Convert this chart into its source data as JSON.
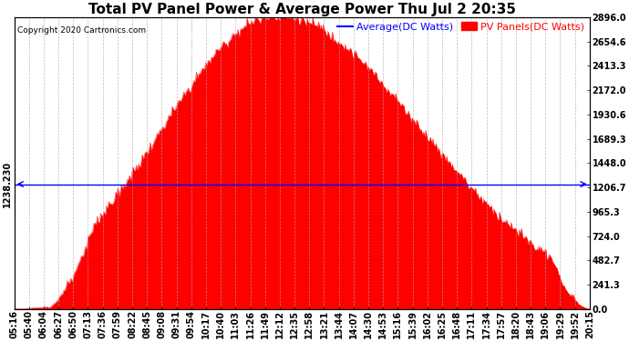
{
  "title": "Total PV Panel Power & Average Power Thu Jul 2 20:35",
  "copyright": "Copyright 2020 Cartronics.com",
  "average_value": 1238.23,
  "y_max": 2896.0,
  "y_min": 0.0,
  "y_ticks": [
    0.0,
    241.3,
    482.7,
    724.0,
    965.3,
    1206.7,
    1448.0,
    1689.3,
    1930.6,
    2172.0,
    2413.3,
    2654.6,
    2896.0
  ],
  "legend_avg_label": "Average(DC Watts)",
  "legend_pv_label": "PV Panels(DC Watts)",
  "avg_line_color": "blue",
  "pv_fill_color": "red",
  "background_color": "#ffffff",
  "grid_color": "#aaaaaa",
  "left_ylabel": "1238.230",
  "x_labels": [
    "05:16",
    "05:40",
    "06:04",
    "06:27",
    "06:50",
    "07:13",
    "07:36",
    "07:59",
    "08:22",
    "08:45",
    "09:08",
    "09:31",
    "09:54",
    "10:17",
    "10:40",
    "11:03",
    "11:26",
    "11:49",
    "12:12",
    "12:35",
    "12:58",
    "13:21",
    "13:44",
    "14:07",
    "14:30",
    "14:53",
    "15:16",
    "15:39",
    "16:02",
    "16:25",
    "16:48",
    "17:11",
    "17:34",
    "17:57",
    "18:20",
    "18:43",
    "19:06",
    "19:29",
    "19:52",
    "20:15"
  ],
  "title_fontsize": 11,
  "tick_fontsize": 7,
  "legend_fontsize": 8
}
